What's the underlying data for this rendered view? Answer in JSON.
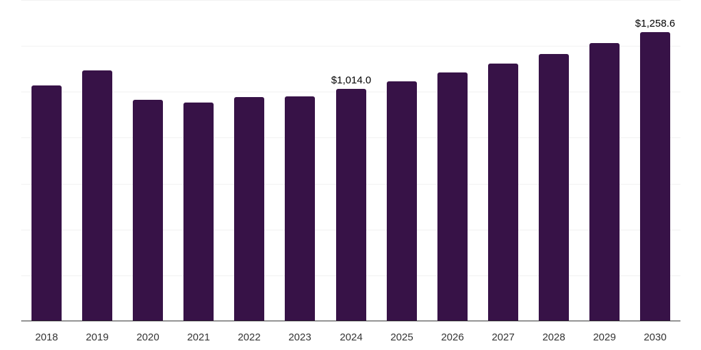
{
  "chart_data": {
    "type": "bar",
    "title": "",
    "xlabel": "",
    "ylabel": "",
    "categories": [
      "2018",
      "2019",
      "2020",
      "2021",
      "2022",
      "2023",
      "2024",
      "2025",
      "2026",
      "2027",
      "2028",
      "2029",
      "2030"
    ],
    "values": [
      1029,
      1094,
      966,
      954,
      978,
      981,
      1014.0,
      1047,
      1085,
      1124,
      1166,
      1211,
      1258.6
    ],
    "data_labels": {
      "2024": "$1,014.0",
      "2030": "$1,258.6"
    },
    "ylim": [
      0,
      1400
    ],
    "yticks": [
      0,
      200,
      400,
      600,
      800,
      1000,
      1200,
      1400
    ],
    "ytick_labels_visible": false,
    "grid": true,
    "legend": null,
    "bar_color": "#371247",
    "grid_color": "#f1f1f1",
    "axis_color": "#333333"
  }
}
